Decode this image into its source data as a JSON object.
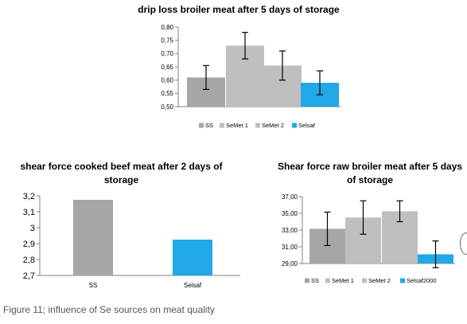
{
  "colors": {
    "SS": "#a6a6a6",
    "SeMet 1": "#bfbfbf",
    "SeMet 2": "#bfbfbf",
    "Selsaf": "#21a8e6",
    "Selsaf2000": "#21a8e6",
    "axis": "#808080",
    "error_bar": "#000000"
  },
  "caption": "Figure 11; influence of Se sources on meat quality",
  "chart_data": [
    {
      "type": "bar",
      "title": "drip loss broiler meat after 5 days of storage",
      "categories": [
        "SS",
        "SeMet 1",
        "SeMet 2",
        "Selsaf"
      ],
      "values": [
        0.61,
        0.73,
        0.655,
        0.59
      ],
      "errors": [
        0.045,
        0.05,
        0.055,
        0.045
      ],
      "ylim": [
        0.5,
        0.8
      ],
      "yticks": [
        "0,50",
        "0,55",
        "0,60",
        "0,65",
        "0,70",
        "0,75",
        "0,80"
      ],
      "legend": [
        "SS",
        "SeMet 1",
        "SeMet 2",
        "Selsaf"
      ],
      "legend_position": "bottom",
      "grid": false
    },
    {
      "type": "bar",
      "title": "shear force cooked beef meat after 2 days of storage",
      "categories": [
        "SS",
        "Selsaf"
      ],
      "values": [
        3.175,
        2.925
      ],
      "ylim": [
        2.7,
        3.2
      ],
      "yticks": [
        "2,7",
        "2,8",
        "2,9",
        "3",
        "3,1",
        "3,2"
      ],
      "xticks": [
        "SS",
        "Selsaf"
      ],
      "grid": false
    },
    {
      "type": "bar",
      "title": "Shear force raw broiler meat after 5 days of storage",
      "categories": [
        "SS",
        "SeMet 1",
        "SeMet 2",
        "Selsaf2000"
      ],
      "values": [
        33.15,
        34.5,
        35.25,
        30.1
      ],
      "errors": [
        2.0,
        2.0,
        1.25,
        1.6
      ],
      "ylim": [
        29,
        37
      ],
      "yticks": [
        "29,00",
        "31,00",
        "33,00",
        "35,00",
        "37,00"
      ],
      "legend": [
        "SS",
        "SeMet 1",
        "SeMet 2",
        "Selsaf2000"
      ],
      "legend_position": "bottom",
      "grid": false
    }
  ]
}
